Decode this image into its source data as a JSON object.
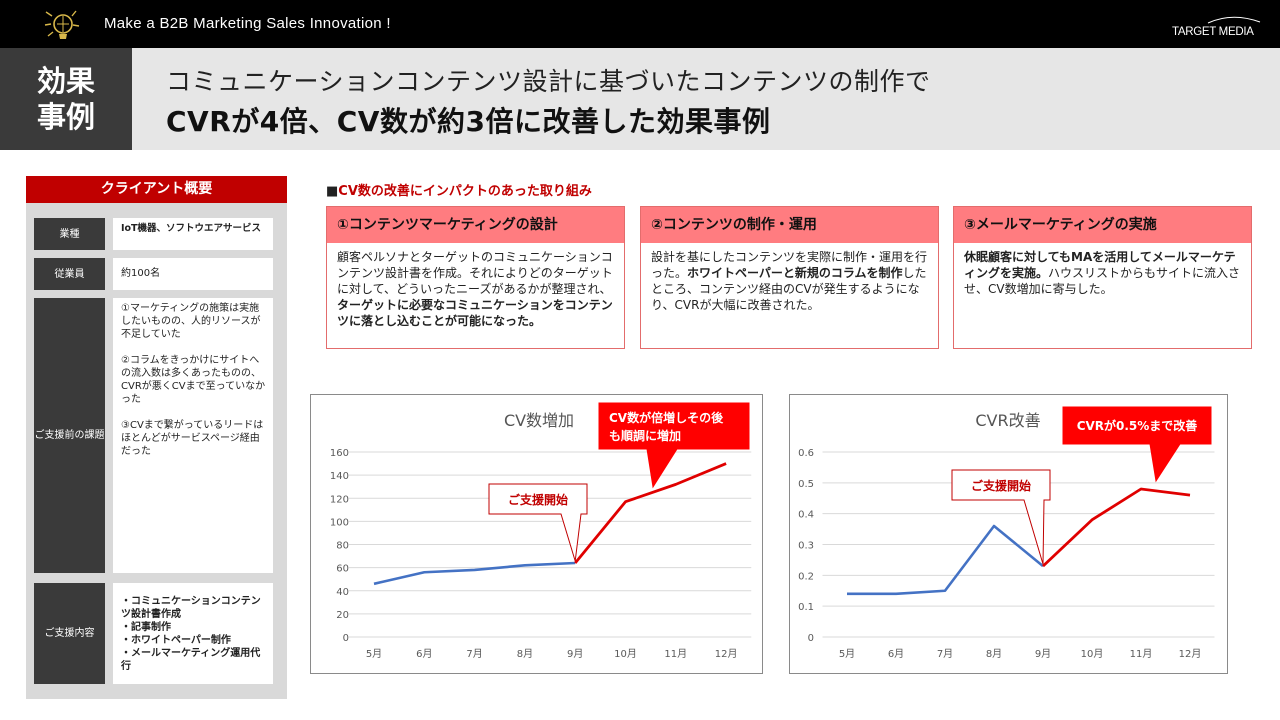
{
  "header": {
    "tagline": "Make a B2B Marketing Sales Innovation !",
    "brand": "TARGET MEDIA"
  },
  "title": {
    "tag_line1": "効果",
    "tag_line2": "事例",
    "line1": "コミュニケーションコンテンツ設計に基づいたコンテンツの制作で",
    "line2": "CVRが4倍、CV数が約3倍に改善した効果事例"
  },
  "client": {
    "heading": "クライアント概要",
    "rows": [
      {
        "label": "業種",
        "value": "IoT機器、ソフトウエアサービス"
      },
      {
        "label": "従業員",
        "value": "約100名"
      },
      {
        "label": "ご支援前の課題",
        "items": [
          "①マーケティングの施策は実施したいものの、人的リソースが不足していた",
          "②コラムをきっかけにサイトへの流入数は多くあったものの、CVRが悪くCVまで至っていなかった",
          "③CVまで繋がっているリードはほとんどがサービスページ経由だった"
        ]
      },
      {
        "label": "ご支援内容",
        "items": [
          "・コミュニケーションコンテンツ設計書作成",
          "・記事制作",
          "・ホワイトペーパー制作",
          "・メールマーケティング運用代行"
        ]
      }
    ]
  },
  "initiatives": {
    "heading_marker": "■",
    "heading": "CV数の改善にインパクトのあった取り組み",
    "cards": [
      {
        "title": "①コンテンツマーケティングの設計",
        "b1": "顧客ペルソナとターゲットのコミュニケーションコンテンツ設計書を作成。それによりどのターゲットに対して、どういったニーズがあるかが整理され、",
        "b2": "ターゲットに必要なコミュニケーションをコンテンツに落とし込むことが可能になった。",
        "b3": "",
        "b4": ""
      },
      {
        "title": "②コンテンツの制作・運用",
        "b1": "設計を基にしたコンテンツを実際に制作・運用を行った。",
        "b2": "ホワイトペーパーと新規のコラムを制作",
        "b3": "したところ、コンテンツ経由のCVが発生するようになり、CVRが大幅に改善された。",
        "b4": ""
      },
      {
        "title": "③メールマーケティングの実施",
        "b1": "",
        "b2": "休眠顧客に対してもMAを活用してメールマーケティングを実施。",
        "b3": "ハウスリストからもサイトに流入させ、CV数増加に寄与した。",
        "b4": ""
      }
    ]
  },
  "chart_data": [
    {
      "type": "line",
      "title": "CV数増加",
      "categories": [
        "5月",
        "6月",
        "7月",
        "8月",
        "9月",
        "10月",
        "11月",
        "12月"
      ],
      "values": [
        46,
        56,
        58,
        62,
        64,
        117,
        132,
        150
      ],
      "highlight_from_index": 4,
      "yticks": [
        "0",
        "20",
        "40",
        "60",
        "80",
        "100",
        "120",
        "140",
        "160"
      ],
      "ylim": [
        0,
        160
      ],
      "grid": true,
      "callouts": [
        {
          "text": "ご支援開始",
          "style": "outline"
        },
        {
          "text_line1": "CV数が倍増しその後",
          "text_line2": "も順調に増加",
          "style": "filled"
        }
      ]
    },
    {
      "type": "line",
      "title": "CVR改善",
      "categories": [
        "5月",
        "6月",
        "7月",
        "8月",
        "9月",
        "10月",
        "11月",
        "12月"
      ],
      "values": [
        0.14,
        0.14,
        0.15,
        0.36,
        0.23,
        0.38,
        0.48,
        0.46
      ],
      "highlight_from_index": 4,
      "yticks": [
        "0",
        "0.1",
        "0.2",
        "0.3",
        "0.4",
        "0.5",
        "0.6"
      ],
      "ylim": [
        0,
        0.6
      ],
      "grid": true,
      "callouts": [
        {
          "text": "ご支援開始",
          "style": "outline"
        },
        {
          "text": "CVRが0.5%まで改善",
          "style": "filled"
        }
      ]
    }
  ],
  "colors": {
    "accent": "#c00000",
    "card_head": "#ff7c80",
    "line_before": "#4472c4",
    "line_after": "#e00000",
    "dark": "#3a3a3a"
  }
}
